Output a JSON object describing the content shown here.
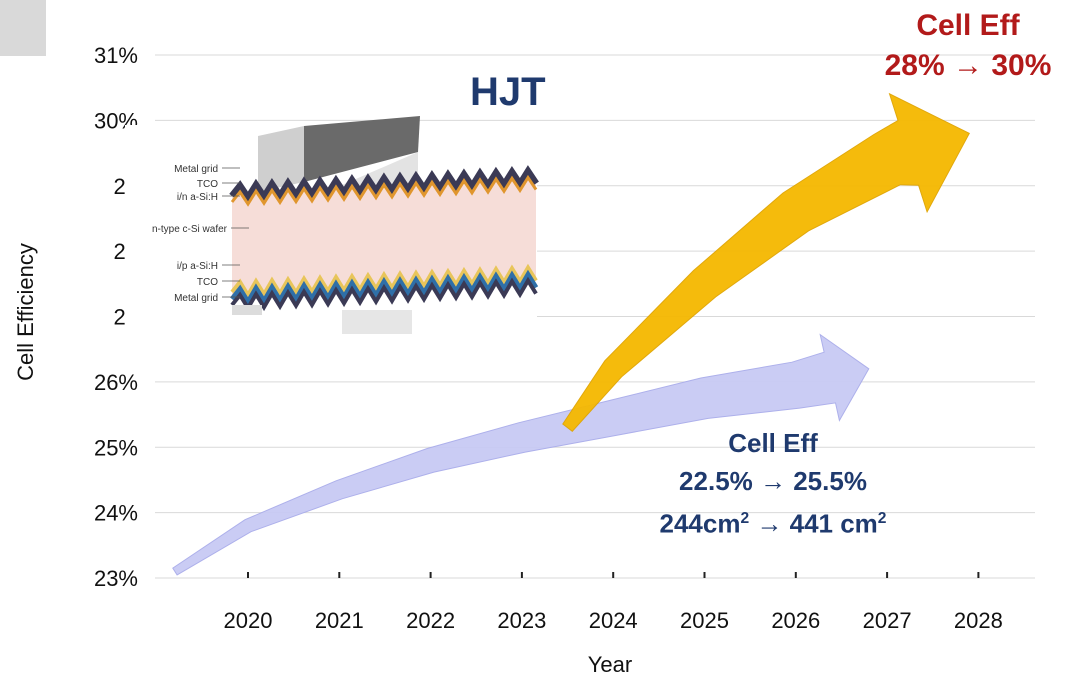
{
  "chart_data": {
    "type": "area",
    "title": "HJT",
    "xlabel": "Year",
    "ylabel": "Cell Efficiency",
    "x_ticks": [
      "2020",
      "2021",
      "2022",
      "2023",
      "2024",
      "2025",
      "2026",
      "2027",
      "2028"
    ],
    "y_ticks": [
      "23%",
      "24%",
      "25%",
      "26%",
      "27",
      "28",
      "29",
      "30%",
      "31%"
    ],
    "ylim": [
      23,
      31
    ],
    "grid": true,
    "series": [
      {
        "color": "#c8caf4",
        "x": [
          2019.2,
          2020,
          2021,
          2022,
          2023,
          2024,
          2025,
          2026,
          2026.8
        ],
        "y": [
          23.1,
          23.8,
          24.35,
          24.8,
          25.15,
          25.45,
          25.75,
          25.95,
          26.2
        ],
        "label_lines": [
          "Cell Eff",
          "22.5% → 25.5%",
          "244cm",
          "2",
          " → 441 cm",
          "2"
        ]
      },
      {
        "color": "#f5b800",
        "x": [
          2023.5,
          2024,
          2025,
          2026,
          2027,
          2027.9
        ],
        "y": [
          25.3,
          26.2,
          27.5,
          28.6,
          29.4,
          29.8
        ],
        "label_lines": [
          "Cell Eff",
          "28% → 30%"
        ]
      }
    ],
    "image_labels": [
      "Metal grid",
      "TCO",
      "i/n a-Si:H",
      "n-type c-Si wafer",
      "i/p a-Si:H",
      "TCO",
      "Metal grid"
    ]
  }
}
